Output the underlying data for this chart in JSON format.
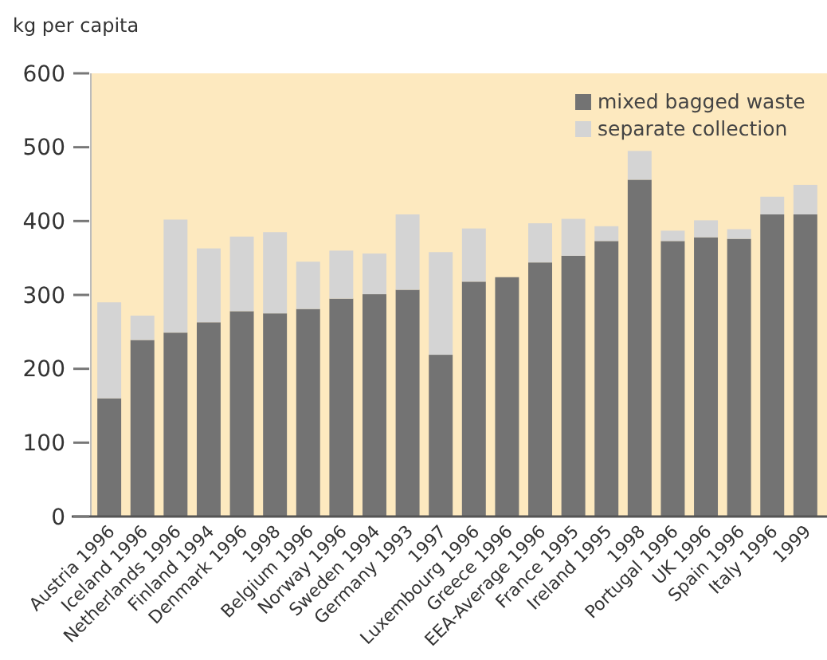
{
  "chart_data": {
    "type": "bar",
    "ylabel": "kg per capita",
    "stacked": true,
    "categories": [
      "Austria 1996",
      "Iceland 1996",
      "Netherlands 1996",
      "Finland 1994",
      "Denmark 1996",
      "1998",
      "Belgium 1996",
      "Norway 1996",
      "Sweden 1994",
      "Germany 1993",
      "1997",
      "Luxembourg 1996",
      "Greece 1996",
      "EEA-Average 1996",
      "France 1995",
      "Ireland 1995",
      "1998",
      "Portugal 1996",
      "UK 1996",
      "Spain 1996",
      "Italy 1996",
      "1999"
    ],
    "series": [
      {
        "name": "mixed bagged waste",
        "color": "#737373",
        "values": [
          160,
          239,
          249,
          263,
          278,
          275,
          281,
          295,
          301,
          307,
          219,
          318,
          324,
          344,
          353,
          373,
          456,
          373,
          378,
          376,
          409,
          409
        ]
      },
      {
        "name": "separate collection",
        "color": "#d4d4d4",
        "values": [
          130,
          33,
          153,
          100,
          101,
          110,
          64,
          65,
          55,
          102,
          139,
          72,
          0,
          53,
          50,
          20,
          39,
          14,
          23,
          13,
          24,
          40
        ]
      }
    ],
    "ylim": [
      0,
      600
    ],
    "yticks": [
      0,
      100,
      200,
      300,
      400,
      500,
      600
    ],
    "grid": false,
    "legend": "top right"
  }
}
